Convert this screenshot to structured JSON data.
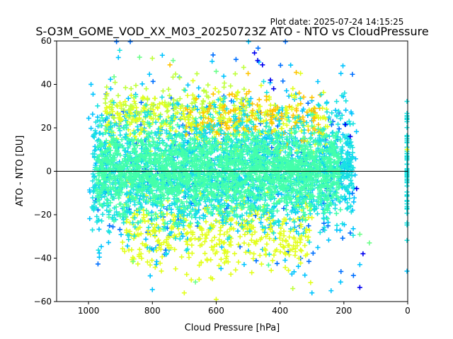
{
  "plot_date": "Plot date: 2025-07-24 14:15:25",
  "chart_data": {
    "type": "scatter",
    "title": "S-O3M_GOME_VOD_XX_M03_20250723Z ATO - NTO vs CloudPressure",
    "xlabel": "Cloud Pressure [hPa]",
    "ylabel": "ATO - NTO [DU]",
    "xlim": [
      1100,
      0
    ],
    "ylim": [
      -60,
      60
    ],
    "x_ticks": [
      1000,
      800,
      600,
      400,
      200,
      0
    ],
    "y_ticks": [
      -60,
      -40,
      -20,
      0,
      20,
      40,
      60
    ],
    "x_tick_labels": [
      "1000",
      "800",
      "600",
      "400",
      "200",
      "0"
    ],
    "y_tick_labels": [
      "−60",
      "−40",
      "−20",
      "0",
      "20",
      "40",
      "60"
    ],
    "zero_line": 0,
    "grid": false,
    "legend": "none",
    "marker": "+",
    "colors": {
      "dense_core": "#44ffaa",
      "core": "#19e2e2",
      "mid": "#00c4ff",
      "outer": "#0070ff",
      "extreme": "#0000f0",
      "yellow": "#e2ff1c",
      "yellow_green": "#bfff3c",
      "orange": "#ffc400",
      "green": "#6cff8a"
    },
    "point_groups": [
      {
        "name": "dense_core",
        "color": "dense_core",
        "x_range": [
          975,
          210
        ],
        "y_mean": 0,
        "y_sd": 9,
        "count": 1800
      },
      {
        "name": "core_spread",
        "color": "core",
        "x_range": [
          990,
          170
        ],
        "y_mean": 0,
        "y_sd": 13,
        "count": 1500
      },
      {
        "name": "mid_spread",
        "color": "mid",
        "x_range": [
          1000,
          160
        ],
        "y_mean": 0,
        "y_sd": 18,
        "count": 650
      },
      {
        "name": "outer_spread",
        "color": "outer",
        "x_range": [
          980,
          170
        ],
        "y_mean": 0,
        "y_sd": 23,
        "count": 220
      },
      {
        "name": "upper_yellow",
        "color": "yellow",
        "x_range": [
          950,
          250
        ],
        "y_mean": 22,
        "y_sd": 7,
        "count": 350
      },
      {
        "name": "lower_yellow",
        "color": "yellow",
        "x_range": [
          900,
          300
        ],
        "y_mean": -28,
        "y_sd": 9,
        "count": 420
      },
      {
        "name": "upper_orange",
        "color": "orange",
        "x_range": [
          700,
          270
        ],
        "y_mean": 24,
        "y_sd": 6,
        "count": 140
      },
      {
        "name": "upper_green",
        "color": "yellow_green",
        "x_range": [
          950,
          500
        ],
        "y_mean": 30,
        "y_sd": 6,
        "count": 160
      },
      {
        "name": "edge_column",
        "color": "core",
        "x_range": [
          2,
          0
        ],
        "y_mean": 0,
        "y_sd": 14,
        "count": 60
      }
    ],
    "notable_points": [
      {
        "x": 480,
        "y": 54.5,
        "color": "extreme"
      },
      {
        "x": 470,
        "y": 51,
        "color": "extreme"
      },
      {
        "x": 455,
        "y": 49,
        "color": "extreme"
      },
      {
        "x": 430,
        "y": 42,
        "color": "extreme"
      },
      {
        "x": 420,
        "y": 38,
        "color": "extreme"
      },
      {
        "x": 840,
        "y": 52.5,
        "color": "green"
      },
      {
        "x": 800,
        "y": 52,
        "color": "yellow_green"
      },
      {
        "x": 745,
        "y": 49,
        "color": "orange"
      },
      {
        "x": 735,
        "y": 51,
        "color": "green"
      },
      {
        "x": 500,
        "y": 45,
        "color": "orange"
      },
      {
        "x": 600,
        "y": 46,
        "color": "green"
      },
      {
        "x": 920,
        "y": 43.5,
        "color": "green"
      },
      {
        "x": 340,
        "y": 36,
        "color": "orange"
      },
      {
        "x": 300,
        "y": 34,
        "color": "orange"
      },
      {
        "x": 195,
        "y": 21.5,
        "color": "extreme"
      },
      {
        "x": 180,
        "y": 16,
        "color": "extreme"
      },
      {
        "x": 160,
        "y": -8,
        "color": "extreme"
      },
      {
        "x": 150,
        "y": -29,
        "color": "green"
      },
      {
        "x": 120,
        "y": -33,
        "color": "green"
      },
      {
        "x": 140,
        "y": -38,
        "color": "extreme"
      },
      {
        "x": 150,
        "y": -43,
        "color": "mid"
      },
      {
        "x": 170,
        "y": -48,
        "color": "outer"
      },
      {
        "x": 150,
        "y": -53.5,
        "color": "extreme"
      },
      {
        "x": 210,
        "y": -51,
        "color": "mid"
      },
      {
        "x": 240,
        "y": -55,
        "color": "mid"
      },
      {
        "x": 300,
        "y": -56,
        "color": "mid"
      },
      {
        "x": 360,
        "y": -54,
        "color": "yellow_green"
      },
      {
        "x": 700,
        "y": -56,
        "color": "yellow"
      },
      {
        "x": 600,
        "y": -59,
        "color": "yellow"
      },
      {
        "x": 800,
        "y": -54.5,
        "color": "mid"
      },
      {
        "x": 665,
        "y": -51,
        "color": "green"
      },
      {
        "x": 860,
        "y": -41.5,
        "color": "green"
      },
      {
        "x": 2,
        "y": -46,
        "color": "mid"
      },
      {
        "x": 2,
        "y": 16,
        "color": "core"
      },
      {
        "x": 2,
        "y": 10,
        "color": "yellow"
      }
    ]
  }
}
